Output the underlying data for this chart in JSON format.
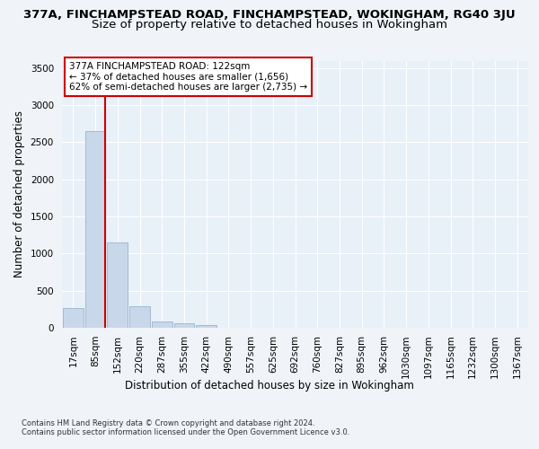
{
  "title_line1": "377A, FINCHAMPSTEAD ROAD, FINCHAMPSTEAD, WOKINGHAM, RG40 3JU",
  "title_line2": "Size of property relative to detached houses in Wokingham",
  "xlabel": "Distribution of detached houses by size in Wokingham",
  "ylabel": "Number of detached properties",
  "bar_values": [
    270,
    2650,
    1150,
    285,
    90,
    55,
    35,
    0,
    0,
    0,
    0,
    0,
    0,
    0,
    0,
    0,
    0,
    0,
    0,
    0,
    0
  ],
  "bar_labels": [
    "17sqm",
    "85sqm",
    "152sqm",
    "220sqm",
    "287sqm",
    "355sqm",
    "422sqm",
    "490sqm",
    "557sqm",
    "625sqm",
    "692sqm",
    "760sqm",
    "827sqm",
    "895sqm",
    "962sqm",
    "1030sqm",
    "1097sqm",
    "1165sqm",
    "1232sqm",
    "1300sqm",
    "1367sqm"
  ],
  "bar_color": "#c8d8ea",
  "bar_edge_color": "#9ab4cc",
  "vline_color": "#cc0000",
  "annotation_text": "377A FINCHAMPSTEAD ROAD: 122sqm\n← 37% of detached houses are smaller (1,656)\n62% of semi-detached houses are larger (2,735) →",
  "annotation_box_facecolor": "#ffffff",
  "annotation_box_edgecolor": "#cc0000",
  "ylim_max": 3600,
  "yticks": [
    0,
    500,
    1000,
    1500,
    2000,
    2500,
    3000,
    3500
  ],
  "fig_facecolor": "#f0f4f8",
  "ax_facecolor": "#e8f0f8",
  "grid_color": "#ffffff",
  "footer_line1": "Contains HM Land Registry data © Crown copyright and database right 2024.",
  "footer_line2": "Contains public sector information licensed under the Open Government Licence v3.0.",
  "title1_fontsize": 9.5,
  "title2_fontsize": 9.5,
  "ylabel_fontsize": 8.5,
  "xlabel_fontsize": 8.5,
  "tick_fontsize": 7.5,
  "annotation_fontsize": 7.5,
  "footer_fontsize": 6.0
}
